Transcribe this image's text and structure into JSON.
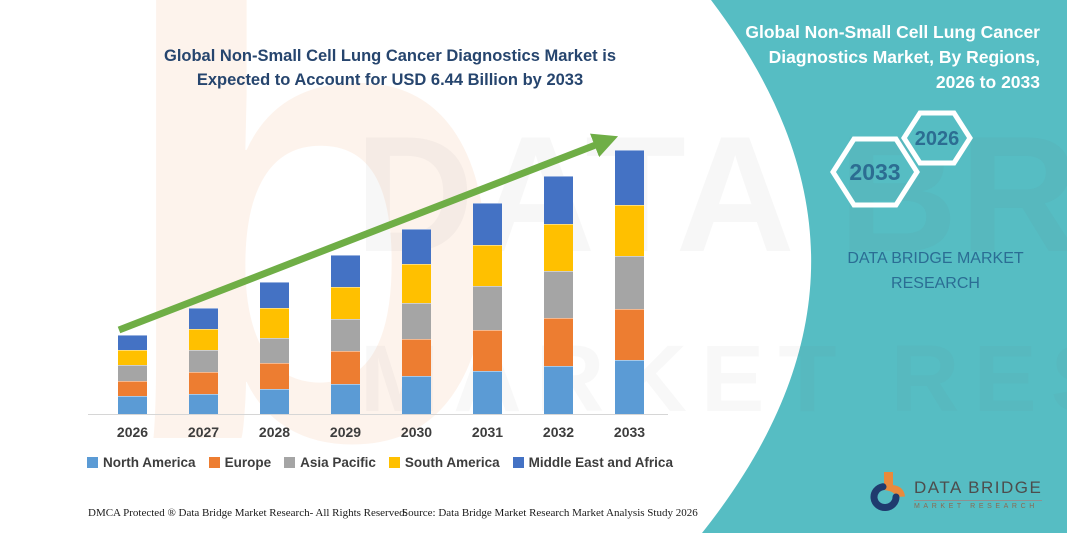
{
  "header": {
    "title_line1": "Global Non-Small Cell Lung Cancer Diagnostics Market is",
    "title_line2": "Expected to Account for USD 6.44 Billion by 2033"
  },
  "right_panel": {
    "title_line1": "Global Non-Small Cell Lung Cancer",
    "title_line2": "Diagnostics Market, By Regions,",
    "title_line3": "2026 to 2033",
    "hexagon_large_label": "2033",
    "hexagon_small_label": "2026",
    "brand_line1": "DATA BRIDGE MARKET",
    "brand_line2": "RESEARCH",
    "logo_name": "DATA BRIDGE",
    "logo_sub": "MARKET RESEARCH"
  },
  "watermark": {
    "letter": "b",
    "line1": "DATA BRIDGE",
    "line2": "MARKET RESEARCH"
  },
  "footer": {
    "dmca": "DMCA Protected ® Data Bridge Market Research-  All Rights Reserved.",
    "source": "Source: Data Bridge Market Research  Market Analysis Study 2026"
  },
  "chart_data": {
    "type": "bar",
    "stacked": true,
    "title": "Global Non-Small Cell Lung Cancer Diagnostics Market is Expected to Account for USD 6.44 Billion by 2033",
    "units": "USD Billion",
    "xlabel": "",
    "ylabel": "",
    "y_axis_visible": false,
    "grid": false,
    "legend_position": "bottom",
    "ylim": [
      0,
      6.6
    ],
    "categories": [
      "2026",
      "2027",
      "2028",
      "2029",
      "2030",
      "2031",
      "2032",
      "2033"
    ],
    "totals": [
      1.93,
      2.58,
      3.22,
      3.87,
      4.51,
      5.15,
      5.8,
      6.44
    ],
    "annotation": "Green upward trend arrow from 2026 to 2033; total reaches USD 6.44 Billion in 2033",
    "series": [
      {
        "name": "North America",
        "color": "#5B9BD5",
        "values": [
          0.44,
          0.48,
          0.62,
          0.74,
          0.92,
          1.06,
          1.16,
          1.32
        ]
      },
      {
        "name": "Europe",
        "color": "#ED7D31",
        "values": [
          0.36,
          0.54,
          0.63,
          0.8,
          0.91,
          1.0,
          1.18,
          1.23
        ]
      },
      {
        "name": "Asia Pacific",
        "color": "#A5A5A5",
        "values": [
          0.39,
          0.55,
          0.61,
          0.77,
          0.89,
          1.07,
          1.14,
          1.3
        ]
      },
      {
        "name": "South America",
        "color": "#FFC000",
        "values": [
          0.37,
          0.5,
          0.73,
          0.79,
          0.93,
          1.0,
          1.15,
          1.26
        ]
      },
      {
        "name": "Middle East and Africa",
        "color": "#4472C4",
        "values": [
          0.37,
          0.51,
          0.63,
          0.77,
          0.86,
          1.02,
          1.17,
          1.33
        ]
      }
    ],
    "trend_arrow_color": "#6FAE46",
    "panel_color": "#56BDC3"
  }
}
